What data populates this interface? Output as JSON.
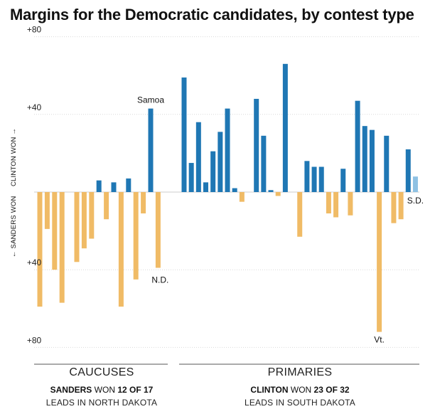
{
  "title": "Margins for the Democratic candidates, by contest type",
  "side_label_up": "CLINTON WON →",
  "side_label_down": "← SANDERS WON",
  "groups": {
    "caucuses": {
      "name": "CAUCUSES",
      "winner": "SANDERS",
      "won_text": "WON",
      "record": "12 OF 17",
      "leads": "LEADS IN NORTH DAKOTA"
    },
    "primaries": {
      "name": "PRIMARIES",
      "winner": "CLINTON",
      "won_text": "WON",
      "record": "23 OF 32",
      "leads": "LEADS IN SOUTH DAKOTA"
    }
  },
  "colors": {
    "clinton": "#1f77b4",
    "sanders": "#f0bb66",
    "leading": "#8ec1e3",
    "axis": "#cccccc"
  },
  "chart_data": {
    "type": "bar",
    "title": "Margins for the Democratic candidates, by contest type",
    "xlabel": "",
    "ylabel": "",
    "ylim": [
      -80,
      80
    ],
    "yticks": [
      {
        "value": 80,
        "label": "+80"
      },
      {
        "value": 40,
        "label": "+40"
      },
      {
        "value": -40,
        "label": "+40"
      },
      {
        "value": -80,
        "label": "+80"
      }
    ],
    "grid": true,
    "series": [
      {
        "group": "caucuses",
        "values": [
          -59,
          -19,
          -40,
          -57,
          0,
          -36,
          -29,
          -24,
          6,
          -14,
          5,
          -59,
          7,
          -45,
          -11,
          43,
          -39
        ],
        "annotations": [
          {
            "index": 15,
            "label": "Samoa"
          },
          {
            "index": 16,
            "label": "N.D."
          }
        ]
      },
      {
        "group": "primaries",
        "values": [
          59,
          15,
          36,
          5,
          21,
          31,
          43,
          2,
          -5,
          0,
          48,
          29,
          1,
          -2,
          66,
          0,
          -23,
          16,
          13,
          13,
          -11,
          -13,
          12,
          -12,
          47,
          34,
          32,
          -72,
          29,
          -16,
          -14,
          22,
          8
        ],
        "leading_index": 32,
        "annotations": [
          {
            "index": 27,
            "label": "Vt."
          },
          {
            "index": 32,
            "label": "S.D."
          }
        ]
      }
    ]
  }
}
